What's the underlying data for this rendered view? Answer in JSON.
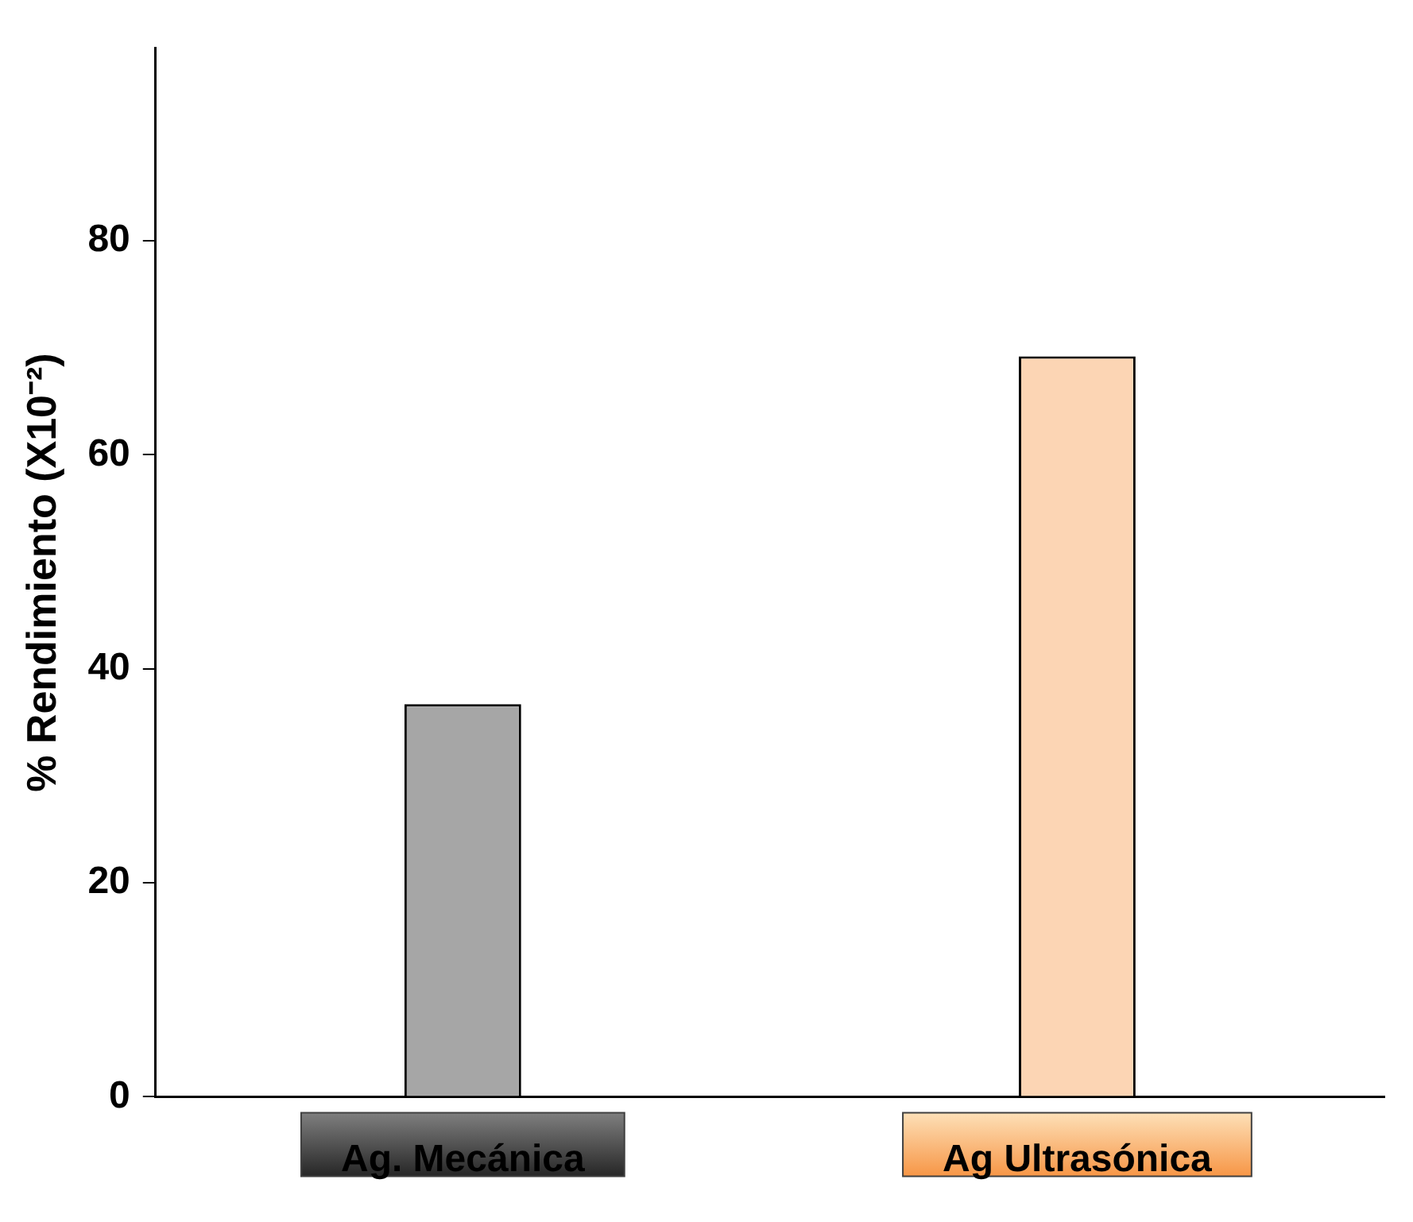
{
  "chart_data": {
    "type": "bar",
    "ylabel": "% Rendimiento (X10⁻²)",
    "categories": [
      "Ag. Mecánica",
      "Ag Ultrasónica"
    ],
    "values": [
      36.7,
      69.2
    ],
    "colors": [
      "#a6a6a6",
      "#fcd5b4"
    ],
    "ylim": [
      0,
      98
    ],
    "yticks": [
      0,
      20,
      40,
      60,
      80
    ],
    "grid": false,
    "legend": false
  }
}
